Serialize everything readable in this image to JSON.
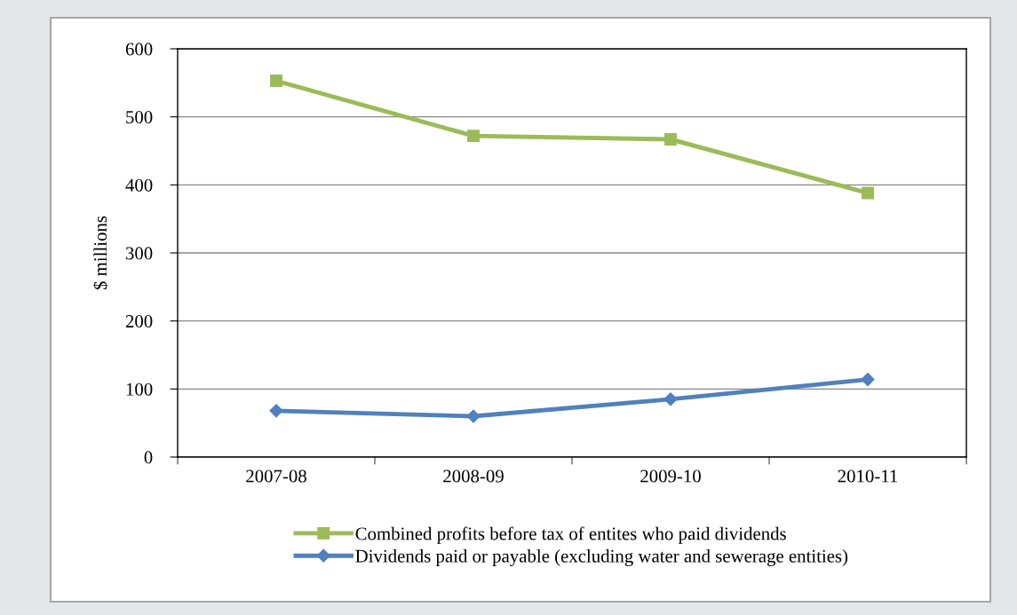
{
  "chart_data": {
    "type": "line",
    "ylabel": "$ millions",
    "categories": [
      "2007-08",
      "2008-09",
      "2009-10",
      "2010-11"
    ],
    "series": [
      {
        "name": "Combined profits before tax of entites who paid dividends",
        "color": "#9bbb59",
        "marker": "square",
        "values": [
          553,
          472,
          467,
          388
        ]
      },
      {
        "name": "Dividends paid or payable (excluding water and sewerage entities)",
        "color": "#4f81bd",
        "marker": "diamond",
        "values": [
          68,
          60,
          85,
          114
        ]
      }
    ],
    "ylim": [
      0,
      600
    ],
    "yticks": [
      0,
      100,
      200,
      300,
      400,
      500,
      600
    ],
    "grid": "y",
    "legend": "bottom",
    "line_style": "solid"
  }
}
